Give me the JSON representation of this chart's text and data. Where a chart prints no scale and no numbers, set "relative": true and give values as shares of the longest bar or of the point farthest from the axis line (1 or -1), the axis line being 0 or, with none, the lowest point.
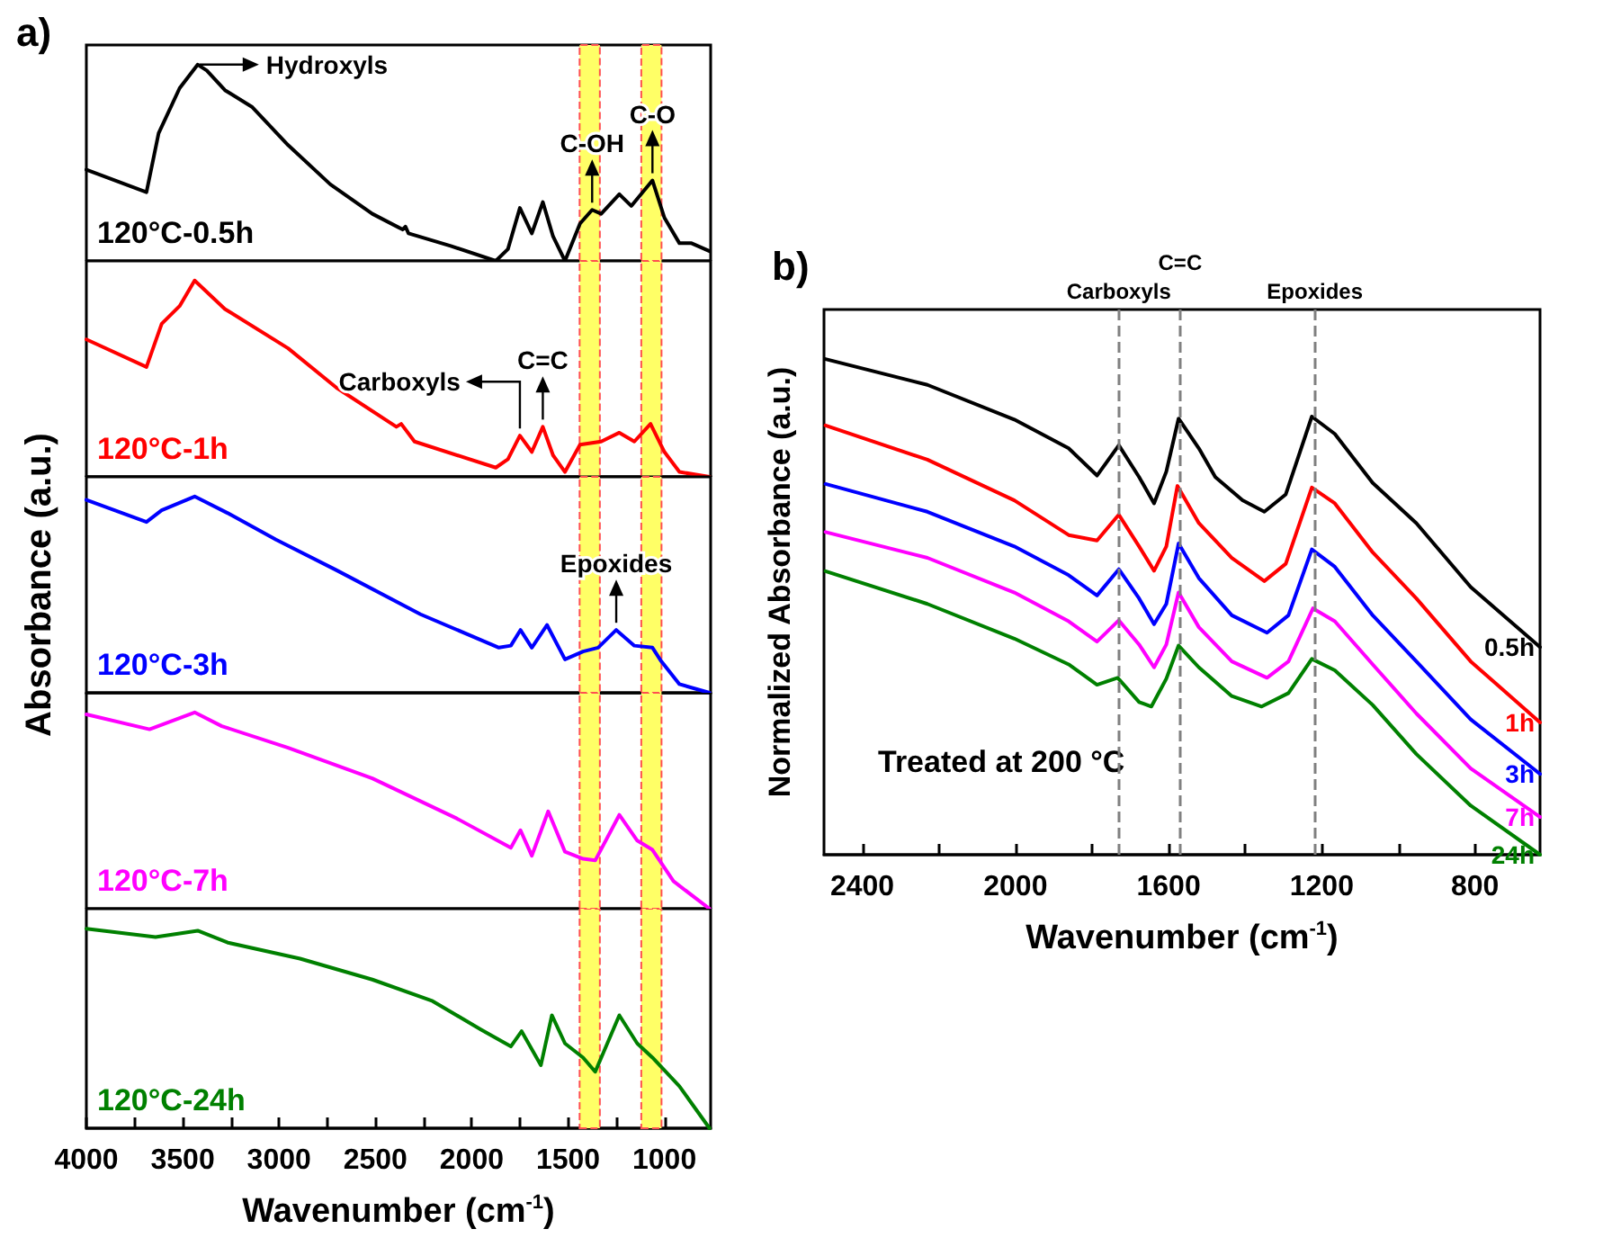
{
  "chart_data": [
    {
      "type": "line",
      "title": "a)",
      "relative": true,
      "xlim": [
        4000,
        760
      ],
      "tick_labels": false,
      "series": [
        {
          "name": "120°C-0.5h",
          "color": "#000000",
          "x": [
            4000,
            3688,
            3625,
            3516,
            3422,
            3375,
            3281,
            3141,
            2953,
            2734,
            2516,
            2359,
            2344,
            2328,
            2109,
            1875,
            1812,
            1750,
            1688,
            1631,
            1578,
            1516,
            1438,
            1375,
            1328,
            1234,
            1172,
            1062,
            1000,
            922,
            859,
            766
          ],
          "values": [
            0.465,
            0.35,
            0.65,
            0.88,
            1.0,
            0.97,
            0.87,
            0.785,
            0.59,
            0.39,
            0.24,
            0.16,
            0.175,
            0.14,
            0.076,
            0,
            0.06,
            0.27,
            0.14,
            0.3,
            0.125,
            0,
            0.19,
            0.26,
            0.24,
            0.34,
            0.28,
            0.41,
            0.22,
            0.09,
            0.09,
            0.05
          ]
        }
      ],
      "bands": [
        {
          "axis": "x",
          "from": 1440,
          "to": 1335,
          "color": "#ffff66"
        },
        {
          "axis": "x",
          "from": 1120,
          "to": 1015,
          "color": "#ffff66"
        }
      ],
      "annotations": [
        {
          "text": "Hydroxyls",
          "x": 3422,
          "y": 1.0
        },
        {
          "text": "C-OH",
          "x": 1375,
          "y": 0.26
        },
        {
          "text": "C-O",
          "x": 1062,
          "y": 0.41
        }
      ]
    },
    {
      "type": "line",
      "relative": true,
      "xlim": [
        4000,
        760
      ],
      "tick_labels": false,
      "series": [
        {
          "name": "120°C-1h",
          "color": "#ff0000",
          "x": [
            4000,
            3688,
            3609,
            3516,
            3438,
            3281,
            2953,
            2703,
            2391,
            2366,
            2297,
            1875,
            1812,
            1750,
            1688,
            1631,
            1578,
            1516,
            1438,
            1328,
            1234,
            1156,
            1072,
            1000,
            922,
            766
          ],
          "values": [
            0.7,
            0.56,
            0.78,
            0.87,
            1.0,
            0.855,
            0.655,
            0.455,
            0.255,
            0.27,
            0.18,
            0.047,
            0.09,
            0.21,
            0.127,
            0.255,
            0.11,
            0.025,
            0.164,
            0.18,
            0.225,
            0.18,
            0.27,
            0.127,
            0.025,
            0
          ]
        }
      ],
      "bands": [
        {
          "axis": "x",
          "from": 1440,
          "to": 1335,
          "color": "#ffff66"
        },
        {
          "axis": "x",
          "from": 1120,
          "to": 1015,
          "color": "#ffff66"
        }
      ],
      "annotations": [
        {
          "text": "Carboxyls",
          "x": 1750,
          "y": 0.21
        },
        {
          "text": "C=C",
          "x": 1631,
          "y": 0.255
        }
      ]
    },
    {
      "type": "line",
      "relative": true,
      "xlim": [
        4000,
        760
      ],
      "tick_labels": false,
      "ylabel": "Absorbance (a.u.)",
      "series": [
        {
          "name": "120°C-3h",
          "color": "#0000ff",
          "x": [
            4000,
            3688,
            3609,
            3438,
            3266,
            3016,
            2703,
            2266,
            1859,
            1797,
            1747,
            1688,
            1609,
            1516,
            1422,
            1344,
            1250,
            1156,
            1062,
            1016,
            922,
            766
          ],
          "values": [
            0.983,
            0.87,
            0.93,
            1.0,
            0.915,
            0.78,
            0.625,
            0.4,
            0.23,
            0.24,
            0.32,
            0.23,
            0.345,
            0.17,
            0.21,
            0.23,
            0.32,
            0.24,
            0.23,
            0.16,
            0.044,
            0
          ]
        }
      ],
      "bands": [
        {
          "axis": "x",
          "from": 1440,
          "to": 1335,
          "color": "#ffff66"
        },
        {
          "axis": "x",
          "from": 1120,
          "to": 1015,
          "color": "#ffff66"
        }
      ],
      "annotations": [
        {
          "text": "Epoxides",
          "x": 1250,
          "y": 0.32
        }
      ]
    },
    {
      "type": "line",
      "relative": true,
      "xlim": [
        4000,
        760
      ],
      "tick_labels": false,
      "series": [
        {
          "name": "120°C-7h",
          "color": "#ff00ff",
          "x": [
            4000,
            3672,
            3438,
            3297,
            2953,
            2516,
            2078,
            1797,
            1747,
            1688,
            1603,
            1516,
            1422,
            1359,
            1234,
            1141,
            1062,
            953,
            766
          ],
          "values": [
            0.99,
            0.914,
            1.0,
            0.93,
            0.82,
            0.664,
            0.46,
            0.31,
            0.4,
            0.27,
            0.496,
            0.29,
            0.254,
            0.246,
            0.478,
            0.347,
            0.3,
            0.14,
            0
          ]
        }
      ],
      "bands": [
        {
          "axis": "x",
          "from": 1440,
          "to": 1335,
          "color": "#ffff66"
        },
        {
          "axis": "x",
          "from": 1120,
          "to": 1015,
          "color": "#ffff66"
        }
      ]
    },
    {
      "type": "line",
      "relative": true,
      "xlim": [
        4000,
        760
      ],
      "tick_labels": "x",
      "xlabel": "Wavenumber (cm$^{-1}$)",
      "xticks": [
        4000,
        {
          "value": 3750,
          "label": null
        },
        3500,
        {
          "value": 3250,
          "label": null
        },
        3000,
        {
          "value": 2750,
          "label": null
        },
        2500,
        {
          "value": 2250,
          "label": null
        },
        2000,
        {
          "value": 1750,
          "label": null
        },
        1500,
        {
          "value": 1250,
          "label": null
        },
        1000
      ],
      "series": [
        {
          "name": "120°C-24h",
          "color": "#008000",
          "x": [
            4000,
            3641,
            3422,
            3266,
            2891,
            2516,
            2203,
            1953,
            1797,
            1741,
            1641,
            1584,
            1516,
            1422,
            1359,
            1234,
            1141,
            1062,
            922,
            766
          ],
          "values": [
            1.0,
            0.958,
            0.99,
            0.93,
            0.85,
            0.745,
            0.637,
            0.495,
            0.41,
            0.486,
            0.316,
            0.566,
            0.425,
            0.354,
            0.283,
            0.566,
            0.425,
            0.354,
            0.21,
            0
          ]
        }
      ],
      "bands": [
        {
          "axis": "x",
          "from": 1440,
          "to": 1335,
          "color": "#ffff66"
        },
        {
          "axis": "x",
          "from": 1120,
          "to": 1015,
          "color": "#ffff66"
        }
      ]
    },
    {
      "type": "line",
      "title": "b)",
      "relative": true,
      "xlim": [
        2500,
        630
      ],
      "xlabel": "Wavenumber (cm$^{-1}$)",
      "ylabel": "Normalized Absorbance (a.u.)",
      "xticks": [
        2400,
        {
          "value": 2200,
          "label": null
        },
        2000,
        {
          "value": 1800,
          "label": null
        },
        1600,
        {
          "value": 1400,
          "label": null
        },
        1200,
        {
          "value": 1000,
          "label": null
        },
        800
      ],
      "annotations": [
        "Treated at 200 °C"
      ],
      "ref_lines": [
        {
          "axis": "x",
          "value": 1730,
          "label": "Carboxyls",
          "color": "#808080",
          "line_style": "dashed"
        },
        {
          "axis": "x",
          "value": 1570,
          "label": "C=C",
          "color": "#808080",
          "line_style": "dashed"
        },
        {
          "axis": "x",
          "value": 1218,
          "label": "Epoxides",
          "color": "#808080",
          "line_style": "dashed"
        }
      ],
      "series": [
        {
          "name": "0.5h",
          "color": "#000000",
          "x": [
            2496,
            2230,
            2003,
            1861,
            1787,
            1730,
            1677,
            1638,
            1606,
            1574,
            1521,
            1478,
            1407,
            1350,
            1294,
            1226,
            1166,
            1067,
            953,
            811,
            630
          ],
          "values": [
            1.0,
            0.948,
            0.878,
            0.82,
            0.765,
            0.826,
            0.762,
            0.709,
            0.773,
            0.88,
            0.82,
            0.762,
            0.715,
            0.692,
            0.727,
            0.884,
            0.849,
            0.75,
            0.669,
            0.54,
            0.419
          ]
        },
        {
          "name": "1h",
          "color": "#ff0000",
          "x": [
            2496,
            2230,
            2003,
            1861,
            1787,
            1730,
            1677,
            1638,
            1606,
            1577,
            1521,
            1435,
            1350,
            1294,
            1226,
            1166,
            1067,
            953,
            811,
            630
          ],
          "values": [
            0.866,
            0.797,
            0.715,
            0.645,
            0.634,
            0.686,
            0.622,
            0.573,
            0.622,
            0.744,
            0.669,
            0.599,
            0.552,
            0.587,
            0.741,
            0.709,
            0.61,
            0.517,
            0.39,
            0.267
          ]
        },
        {
          "name": "3h",
          "color": "#0000ff",
          "x": [
            2496,
            2230,
            2003,
            1861,
            1787,
            1730,
            1677,
            1638,
            1606,
            1574,
            1521,
            1435,
            1343,
            1287,
            1226,
            1166,
            1067,
            953,
            811,
            630
          ],
          "values": [
            0.748,
            0.692,
            0.622,
            0.564,
            0.523,
            0.576,
            0.517,
            0.465,
            0.506,
            0.628,
            0.558,
            0.483,
            0.448,
            0.483,
            0.616,
            0.581,
            0.483,
            0.39,
            0.273,
            0.163
          ]
        },
        {
          "name": "7h",
          "color": "#ff00ff",
          "x": [
            2496,
            2230,
            2003,
            1861,
            1787,
            1730,
            1677,
            1638,
            1606,
            1574,
            1521,
            1435,
            1343,
            1287,
            1223,
            1166,
            1067,
            953,
            811,
            630
          ],
          "values": [
            0.651,
            0.599,
            0.529,
            0.471,
            0.43,
            0.473,
            0.424,
            0.378,
            0.424,
            0.529,
            0.459,
            0.39,
            0.357,
            0.39,
            0.497,
            0.471,
            0.384,
            0.285,
            0.174,
            0.076
          ]
        },
        {
          "name": "24h",
          "color": "#008000",
          "x": [
            2496,
            2230,
            2003,
            1861,
            1787,
            1733,
            1677,
            1645,
            1606,
            1574,
            1521,
            1435,
            1357,
            1287,
            1226,
            1166,
            1067,
            953,
            811,
            630
          ],
          "values": [
            0.572,
            0.506,
            0.436,
            0.384,
            0.343,
            0.357,
            0.308,
            0.299,
            0.355,
            0.422,
            0.378,
            0.32,
            0.299,
            0.326,
            0.395,
            0.372,
            0.302,
            0.203,
            0.099,
            0
          ]
        }
      ]
    }
  ]
}
